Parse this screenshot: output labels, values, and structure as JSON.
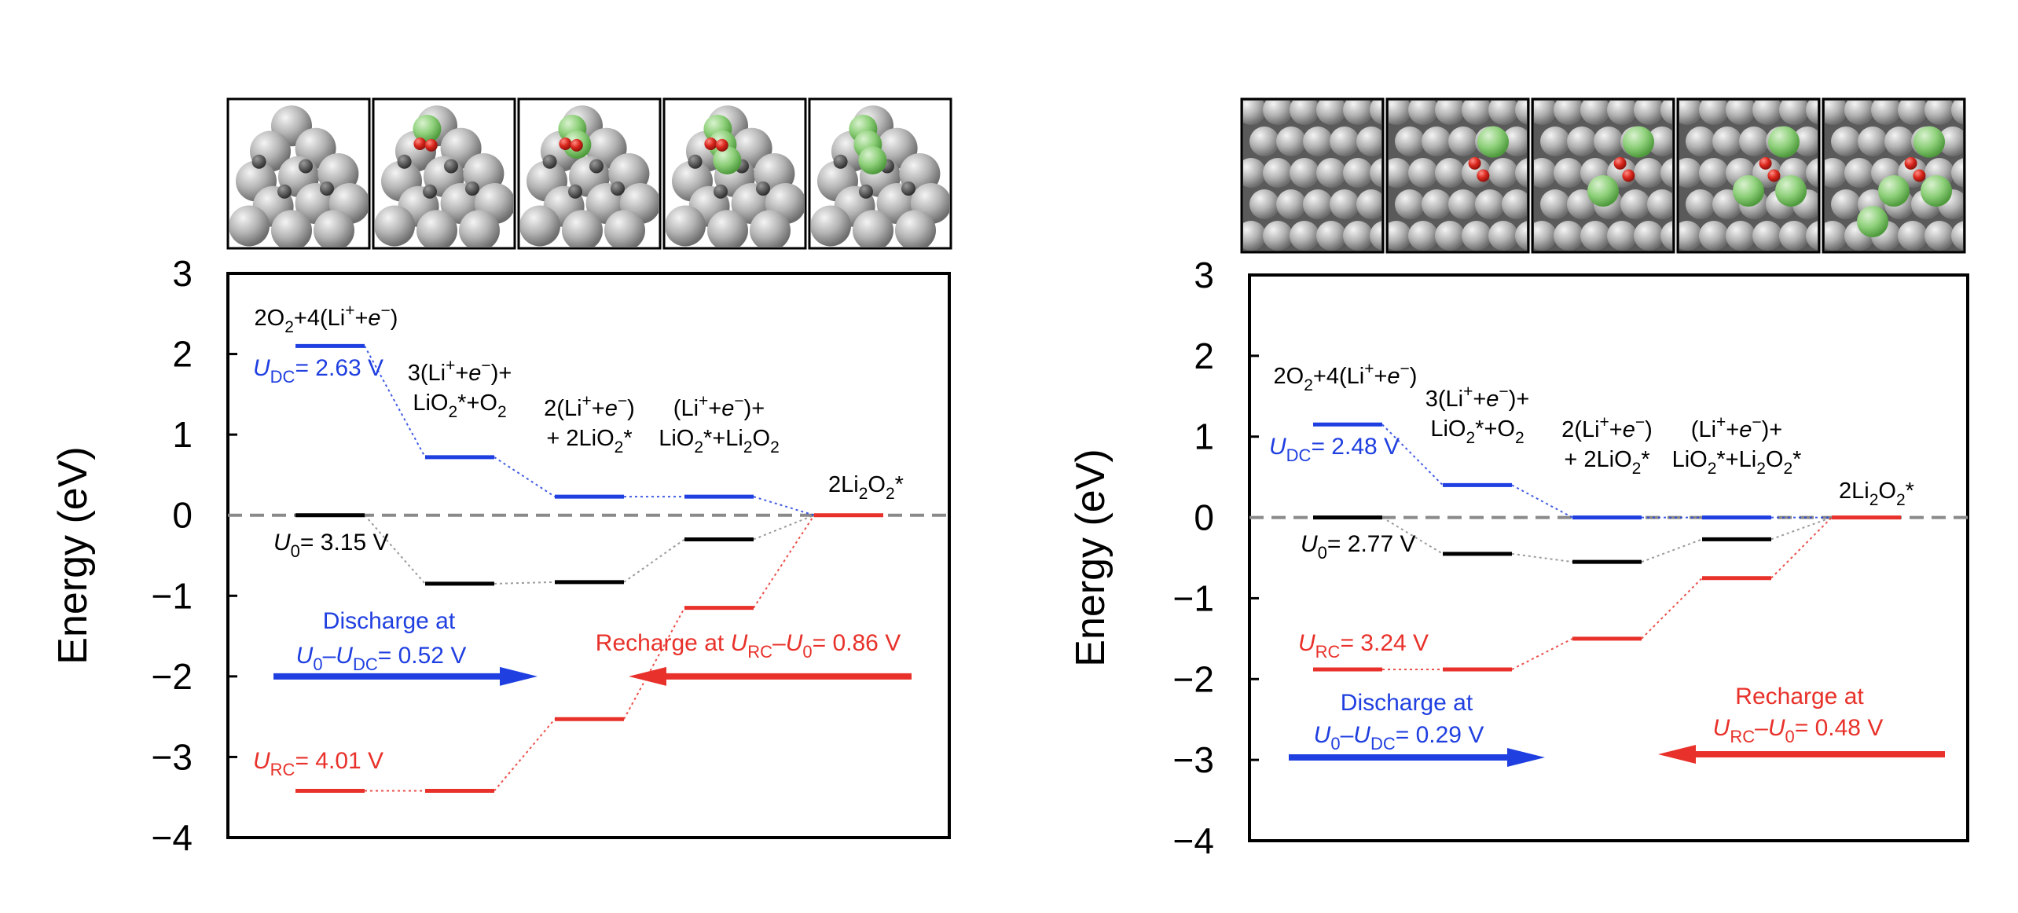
{
  "chart_data": [
    {
      "type": "energy-diagram",
      "ylabel": "Energy (eV)",
      "ylim": [
        -4,
        3
      ],
      "yticks": [
        "3",
        "2",
        "1",
        "0",
        "−1",
        "−2",
        "−3",
        "−4"
      ],
      "dashed_zero_line": true,
      "grid": false,
      "states": [
        {
          "label": "2O2+4(Li+ + e−)"
        },
        {
          "label": "3(Li+ + e−)+LiO2*+O2"
        },
        {
          "label": "2(Li+ + e−) + 2LiO2*"
        },
        {
          "label": "(Li+ + e−)+LiO2*+Li2O2"
        },
        {
          "label": "2Li2O2*"
        }
      ],
      "series": [
        {
          "name": "UDC= 2.63 V",
          "color": "#1f3fe0",
          "values": [
            2.1,
            0.72,
            0.23,
            0.23,
            0.0
          ]
        },
        {
          "name": "U0= 3.15 V",
          "color": "#000000",
          "values": [
            0.0,
            -0.85,
            -0.83,
            -0.3,
            0.0
          ]
        },
        {
          "name": "URC= 4.01 V",
          "color": "#e8312a",
          "values": [
            -3.42,
            -3.42,
            -2.53,
            -1.15,
            0.0
          ]
        }
      ],
      "annotations": {
        "discharge": "Discharge at U0–UDC= 0.52 V",
        "recharge": "Recharge at URC–U0= 0.86 V"
      },
      "structure_images": 5
    },
    {
      "type": "energy-diagram",
      "ylabel": "Energy (eV)",
      "ylim": [
        -4,
        3
      ],
      "yticks": [
        "3",
        "2",
        "1",
        "0",
        "−1",
        "−2",
        "−3",
        "−4"
      ],
      "dashed_zero_line": true,
      "grid": false,
      "states": [
        {
          "label": "2O2+4(Li+ + e−)"
        },
        {
          "label": "3(Li+ + e−)+LiO2*+O2"
        },
        {
          "label": "2(Li+ + e−) + 2LiO2*"
        },
        {
          "label": "(Li+ + e−)+LiO2*+Li2O2*"
        },
        {
          "label": "2Li2O2*"
        }
      ],
      "series": [
        {
          "name": "UDC= 2.48 V",
          "color": "#1f3fe0",
          "values": [
            1.15,
            0.4,
            0.0,
            0.0,
            0.0
          ]
        },
        {
          "name": "U0= 2.77 V",
          "color": "#000000",
          "values": [
            0.0,
            -0.45,
            -0.55,
            -0.27,
            0.0
          ]
        },
        {
          "name": "URC= 3.24 V",
          "color": "#e8312a",
          "values": [
            -1.88,
            -1.88,
            -1.5,
            -0.75,
            0.0
          ]
        }
      ],
      "annotations": {
        "discharge": "Discharge at U0–UDC= 0.29 V",
        "recharge": "Recharge at URC–U0= 0.48 V"
      },
      "structure_images": 5
    }
  ],
  "colors": {
    "discharge": "#1f3fe0",
    "equilibrium": "#000000",
    "recharge": "#e8312a",
    "zero_line": "#8a8a8a",
    "atom_metal": "#a9a9a9",
    "atom_li": "#8ed07a",
    "atom_o": "#d9261c"
  }
}
